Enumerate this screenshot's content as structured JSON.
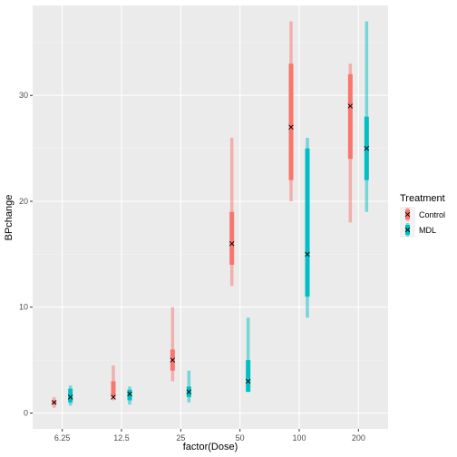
{
  "chart_data": {
    "type": "interval",
    "xlabel": "factor(Dose)",
    "ylabel": "BPchange",
    "categories": [
      "6.25",
      "12.5",
      "25",
      "50",
      "100",
      "200"
    ],
    "ylim": [
      -1.5,
      38.5
    ],
    "yticks": [
      0,
      10,
      20,
      30
    ],
    "grid": true,
    "legend": {
      "title": "Treatment",
      "position": "right"
    },
    "series": [
      {
        "name": "Control",
        "color": "#F8766D",
        "points": [
          {
            "dose": "6.25",
            "min": 0.5,
            "q1": 0.8,
            "median": 1.0,
            "q3": 1.2,
            "max": 1.5
          },
          {
            "dose": "12.5",
            "min": 1.2,
            "q1": 1.5,
            "median": 1.5,
            "q3": 3.0,
            "max": 4.5
          },
          {
            "dose": "25",
            "min": 3.0,
            "q1": 4.0,
            "median": 5.0,
            "q3": 6.0,
            "max": 10.0
          },
          {
            "dose": "50",
            "min": 12.0,
            "q1": 14.0,
            "median": 16.0,
            "q3": 19.0,
            "max": 26.0
          },
          {
            "dose": "100",
            "min": 20.0,
            "q1": 22.0,
            "median": 27.0,
            "q3": 33.0,
            "max": 37.0
          },
          {
            "dose": "200",
            "min": 18.0,
            "q1": 24.0,
            "median": 29.0,
            "q3": 32.0,
            "max": 33.0
          }
        ]
      },
      {
        "name": "MDL",
        "color": "#00BFC4",
        "points": [
          {
            "dose": "6.25",
            "min": 0.7,
            "q1": 1.0,
            "median": 1.5,
            "q3": 2.3,
            "max": 2.6
          },
          {
            "dose": "12.5",
            "min": 0.8,
            "q1": 1.2,
            "median": 1.8,
            "q3": 2.2,
            "max": 2.5
          },
          {
            "dose": "25",
            "min": 1.0,
            "q1": 1.5,
            "median": 2.0,
            "q3": 2.5,
            "max": 4.0
          },
          {
            "dose": "50",
            "min": 2.0,
            "q1": 2.0,
            "median": 3.0,
            "q3": 5.0,
            "max": 9.0
          },
          {
            "dose": "100",
            "min": 9.0,
            "q1": 11.0,
            "median": 15.0,
            "q3": 25.0,
            "max": 26.0
          },
          {
            "dose": "200",
            "min": 19.0,
            "q1": 22.0,
            "median": 25.0,
            "q3": 28.0,
            "max": 37.0
          }
        ]
      }
    ]
  }
}
